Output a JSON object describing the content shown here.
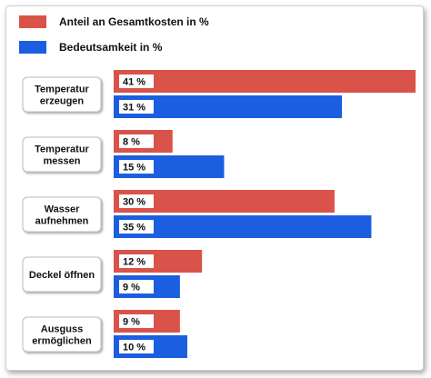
{
  "chart_data": {
    "type": "bar",
    "orientation": "horizontal",
    "categories": [
      [
        "Temperatur",
        "erzeugen"
      ],
      [
        "Temperatur",
        "messen"
      ],
      [
        "Wasser",
        "aufnehmen"
      ],
      [
        "Deckel öffnen"
      ],
      [
        "Ausguss",
        "ermöglichen"
      ]
    ],
    "series": [
      {
        "name": "Anteil an Gesamtkosten in %",
        "color": "#d9534a",
        "values": [
          41,
          8,
          30,
          12,
          9
        ],
        "labels": [
          "41 %",
          "8 %",
          "30 %",
          "12 %",
          "9 %"
        ]
      },
      {
        "name": "Bedeutsamkeit in %",
        "color": "#1b5fe0",
        "values": [
          31,
          15,
          35,
          9,
          10
        ],
        "labels": [
          "31 %",
          "15 %",
          "35 %",
          "9 %",
          "10 %"
        ]
      }
    ],
    "xlim": [
      0,
      41
    ],
    "legend_position": "top-left",
    "grid": false
  }
}
